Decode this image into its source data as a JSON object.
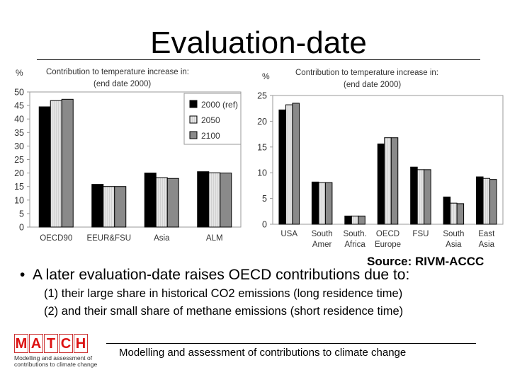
{
  "title": "Evaluation-date",
  "source": "Source: RIVM-ACCC",
  "bullet": "A later evaluation-date raises OECD contributions due to:",
  "points": [
    "(1) their large share in historical CO2 emissions (long residence time)",
    "(2) and their small share of methane emissions (short residence time)"
  ],
  "footer": "Modelling and assessment of contributions to climate change",
  "logo": {
    "letters": [
      "M",
      "A",
      "T",
      "C",
      "H"
    ],
    "tagline_1": "Modelling and assessment of",
    "tagline_2": "contributions to climate change"
  },
  "colors": {
    "series_2000": "#000000",
    "series_2050": "#e4e4e4",
    "series_2100": "#8a8a8a"
  },
  "chart_data": [
    {
      "type": "bar",
      "unit_label": "%",
      "title_line1": "Contribution to temperature increase in:",
      "title_line2": "(end date 2000)",
      "categories": [
        [
          "OECD90"
        ],
        [
          "EEUR&FSU"
        ],
        [
          "Asia"
        ],
        [
          "ALM"
        ]
      ],
      "series": [
        {
          "name": "2000 (ref)",
          "values": [
            44.5,
            15.8,
            20.0,
            20.5
          ]
        },
        {
          "name": "2050",
          "values": [
            46.8,
            15.0,
            18.3,
            20.1
          ]
        },
        {
          "name": "2100",
          "values": [
            47.3,
            15.0,
            18.0,
            20.0
          ]
        }
      ],
      "ylim": [
        0,
        50
      ],
      "yticks": [
        0,
        5,
        10,
        15,
        20,
        25,
        30,
        35,
        40,
        45,
        50
      ],
      "legend_position": "right"
    },
    {
      "type": "bar",
      "unit_label": "%",
      "title_line1": "Contribution to temperature increase in:",
      "title_line2": "(end date 2000)",
      "categories": [
        [
          "USA"
        ],
        [
          "South",
          "Amer"
        ],
        [
          "South.",
          "Africa"
        ],
        [
          "OECD",
          "Europe"
        ],
        [
          "FSU"
        ],
        [
          "South",
          "Asia"
        ],
        [
          "East",
          "Asia"
        ]
      ],
      "series": [
        {
          "name": "2000 (ref)",
          "values": [
            22.2,
            8.2,
            1.6,
            15.6,
            11.1,
            5.3,
            9.2
          ]
        },
        {
          "name": "2050",
          "values": [
            23.2,
            8.1,
            1.6,
            16.8,
            10.6,
            4.1,
            8.9
          ]
        },
        {
          "name": "2100",
          "values": [
            23.5,
            8.1,
            1.6,
            16.8,
            10.6,
            4.0,
            8.7
          ]
        }
      ],
      "ylim": [
        0,
        25
      ],
      "yticks": [
        0,
        5,
        10,
        15,
        20,
        25
      ]
    }
  ]
}
